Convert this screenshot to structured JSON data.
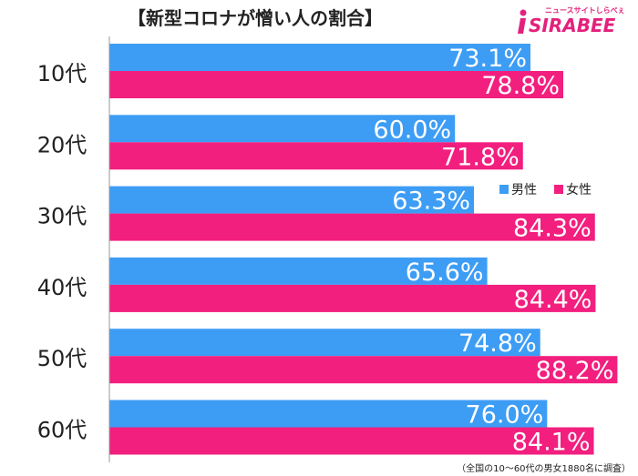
{
  "title": "【新型コロナが憎い人の割合】",
  "logo": {
    "brand": "SIRABEE",
    "sub": "ニュースサイトしらべぇ"
  },
  "note": "（全国の10〜60代の男女1880名に調査）",
  "colors": {
    "male": "#3d9df5",
    "female": "#f21f7f",
    "axis": "#999999"
  },
  "chart_data": {
    "type": "bar",
    "orientation": "horizontal",
    "categories": [
      "10代",
      "20代",
      "30代",
      "40代",
      "50代",
      "60代"
    ],
    "series": [
      {
        "name": "男性",
        "values": [
          73.1,
          60.0,
          63.3,
          65.6,
          74.8,
          76.0
        ],
        "labels": [
          "73.1%",
          "60.0%",
          "63.3%",
          "65.6%",
          "74.8%",
          "76.0%"
        ]
      },
      {
        "name": "女性",
        "values": [
          78.8,
          71.8,
          84.3,
          84.4,
          88.2,
          84.1
        ],
        "labels": [
          "78.8%",
          "71.8%",
          "84.3%",
          "84.4%",
          "88.2%",
          "84.1%"
        ]
      }
    ],
    "xlim": [
      0,
      100
    ],
    "legend": "right"
  }
}
